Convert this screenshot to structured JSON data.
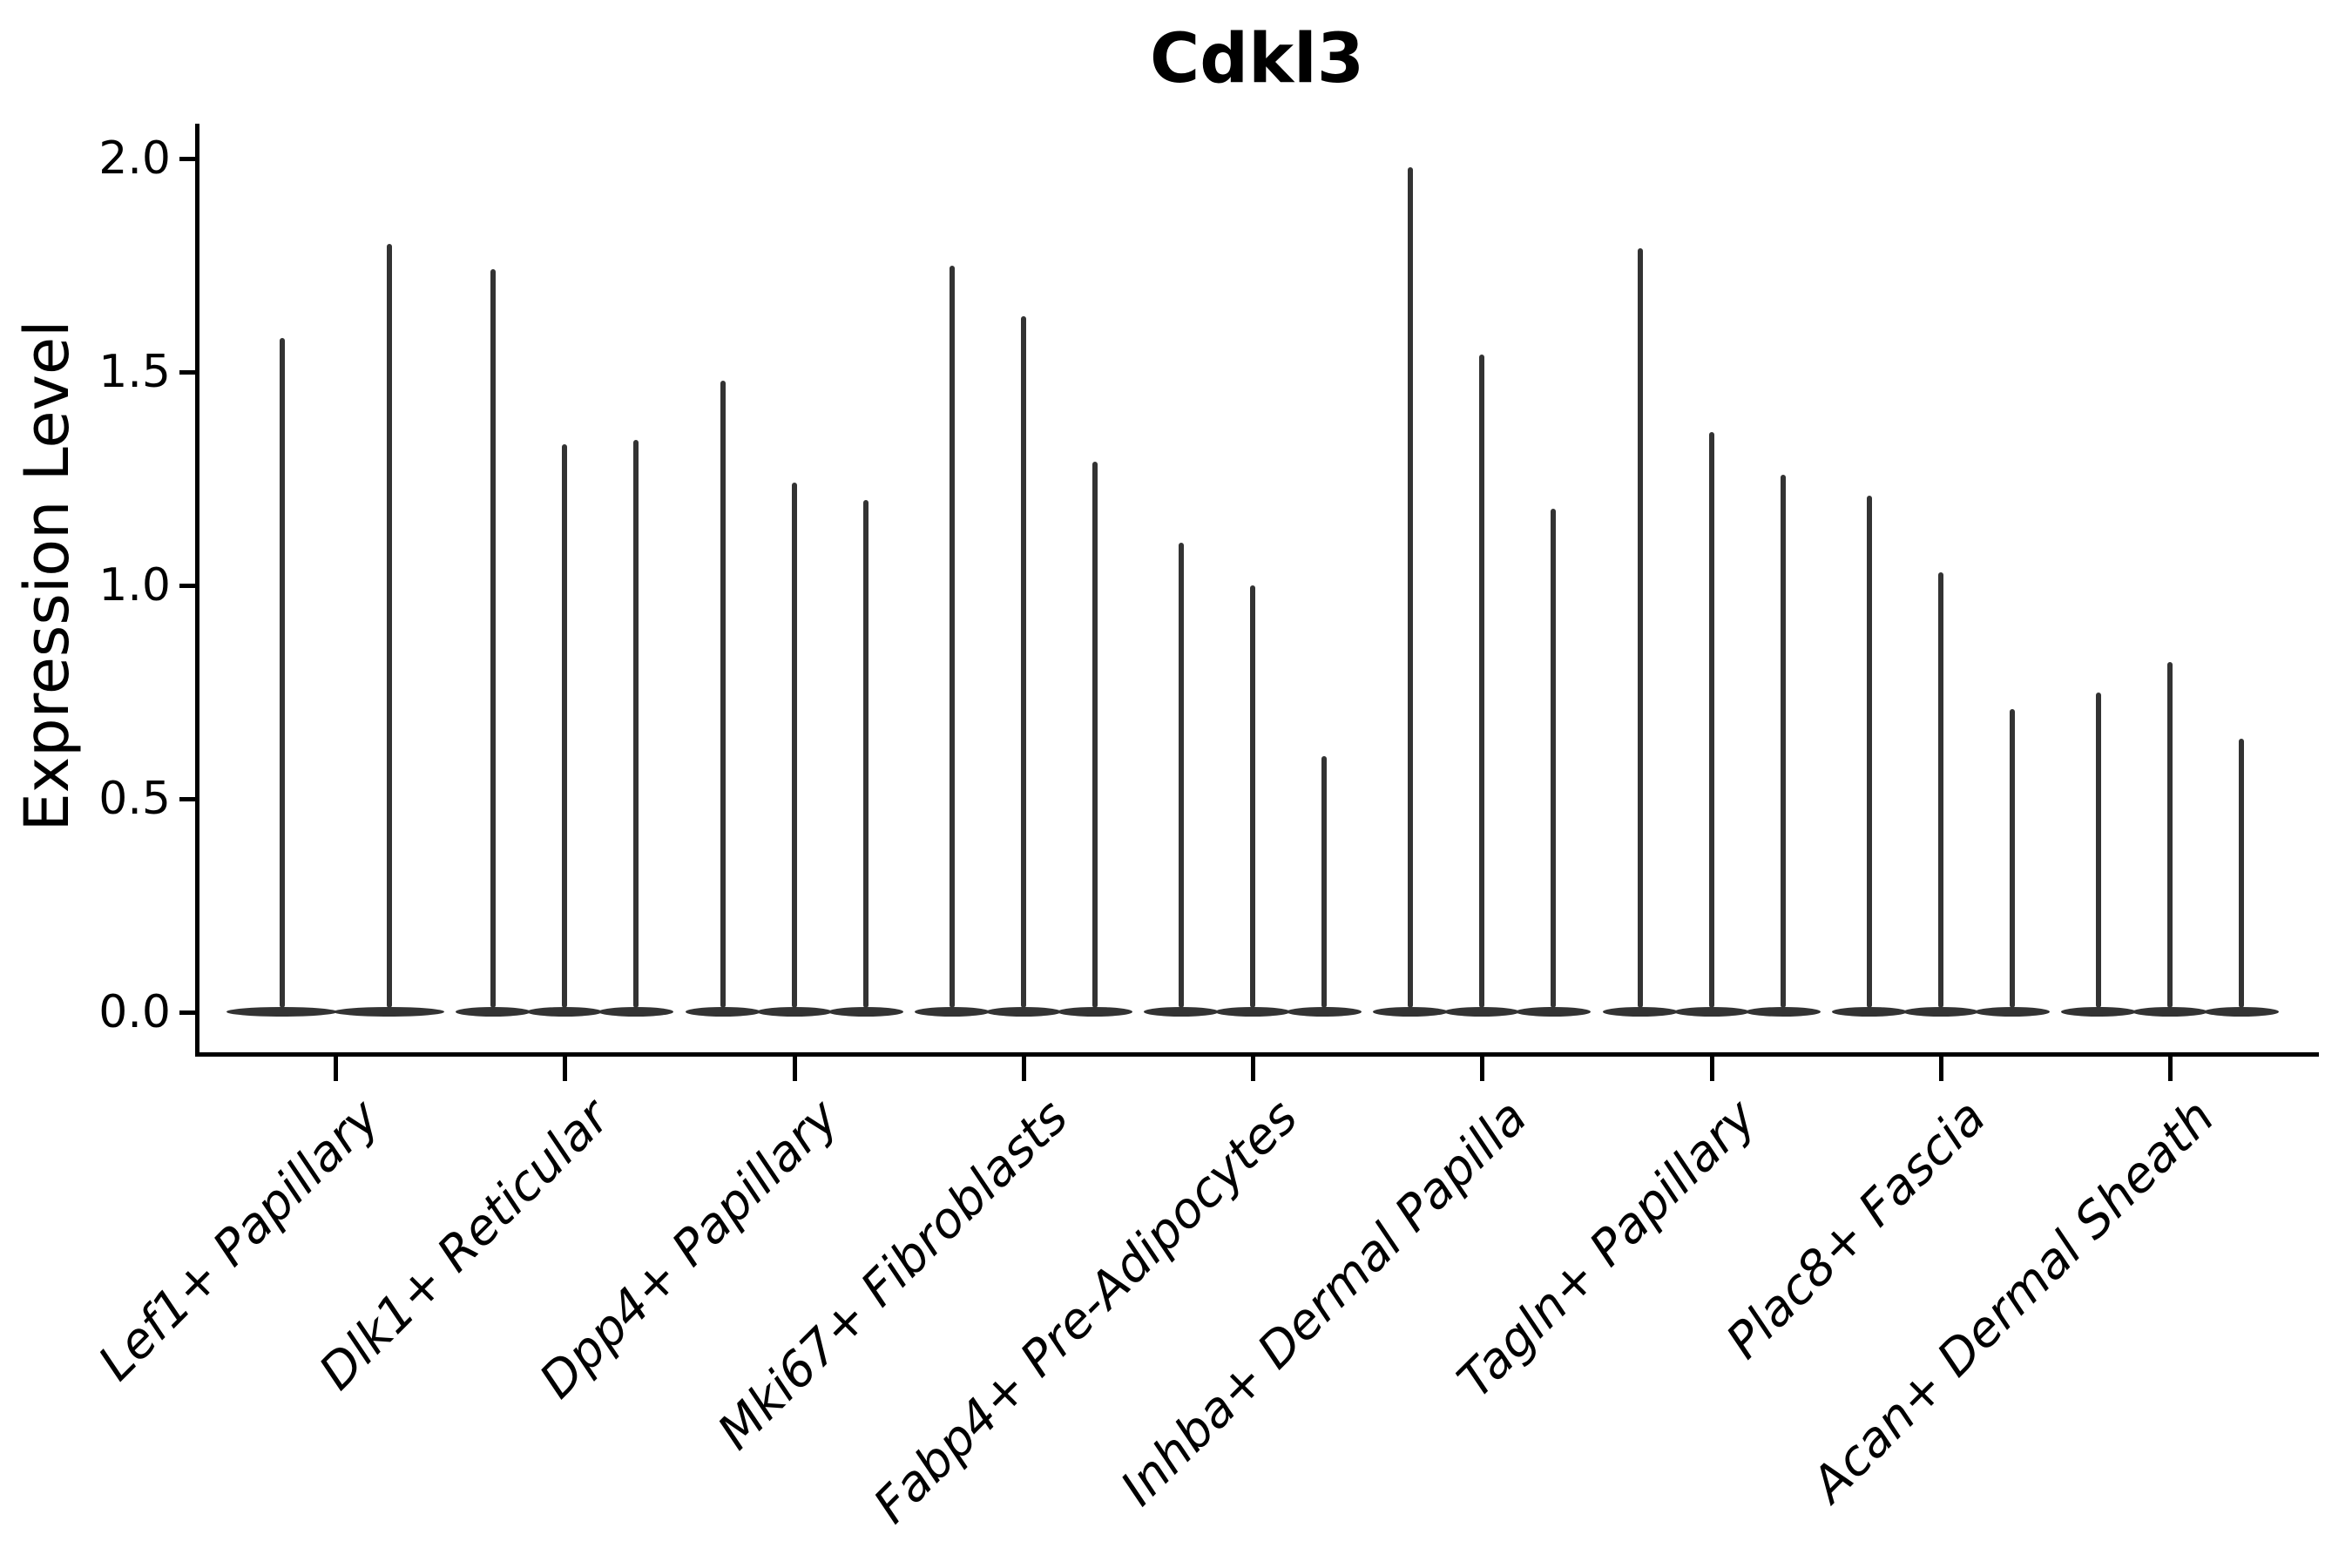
{
  "title": "Cdkl3",
  "colors": {
    "violin": "#333333",
    "axis": "#000000",
    "text": "#000000",
    "background": "#ffffff"
  },
  "chart_data": {
    "type": "violin",
    "title": "Cdkl3",
    "xlabel": "",
    "ylabel": "Expression Level",
    "ylim": [
      0.0,
      2.08
    ],
    "yticks": [
      0.0,
      0.5,
      1.0,
      1.5,
      2.0
    ],
    "ytick_labels": [
      "0.0",
      "0.5",
      "1.0",
      "1.5",
      "2.0"
    ],
    "grid": false,
    "legend_position": "none",
    "categories": [
      "Lef1+ Papillary",
      "Dlk1+ Reticular",
      "Dpp4+ Papillary",
      "Mki67+ Fibroblasts",
      "Fabp4+ Pre-Adipocytes",
      "Inhba+ Dermal Papilla",
      "Tagln+ Papillary",
      "Plac8+ Fascia",
      "Acan+ Dermal Sheath"
    ],
    "groups": [
      {
        "category": "Lef1+ Papillary",
        "violin_max_values": [
          1.58,
          1.8
        ]
      },
      {
        "category": "Dlk1+ Reticular",
        "violin_max_values": [
          1.74,
          1.33,
          1.34
        ]
      },
      {
        "category": "Dpp4+ Papillary",
        "violin_max_values": [
          1.48,
          1.24,
          1.2
        ]
      },
      {
        "category": "Mki67+ Fibroblasts",
        "violin_max_values": [
          1.75,
          1.63,
          1.29
        ]
      },
      {
        "category": "Fabp4+ Pre-Adipocytes",
        "violin_max_values": [
          1.1,
          1.0,
          0.6
        ]
      },
      {
        "category": "Inhba+ Dermal Papilla",
        "violin_max_values": [
          1.98,
          1.54,
          1.18
        ]
      },
      {
        "category": "Tagln+ Papillary",
        "violin_max_values": [
          1.79,
          1.36,
          1.26
        ]
      },
      {
        "category": "Plac8+ Fascia",
        "violin_max_values": [
          1.21,
          1.03,
          0.71
        ]
      },
      {
        "category": "Acan+ Dermal Sheath",
        "violin_max_values": [
          0.75,
          0.82,
          0.64
        ]
      }
    ]
  }
}
